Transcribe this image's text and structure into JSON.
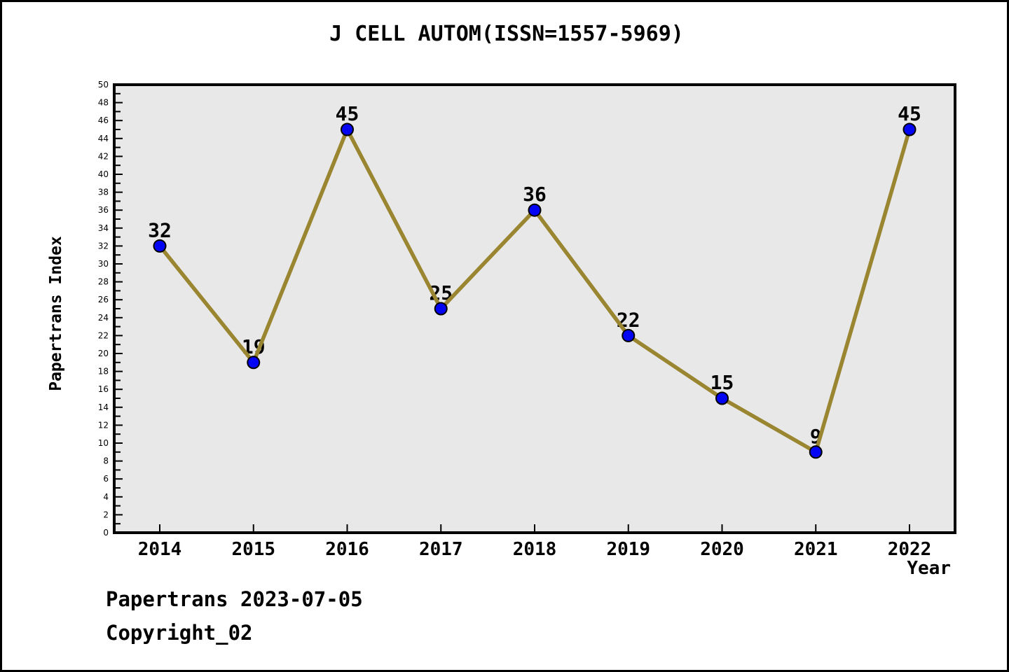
{
  "header": {
    "title": "J CELL AUTOM(ISSN=1557-5969)"
  },
  "axes": {
    "x_label": "Year",
    "y_label": "Papertrans Index"
  },
  "footer": {
    "line1": "Papertrans 2023-07-05",
    "line2": "Copyright_02"
  },
  "colors": {
    "line": "#9A8530",
    "marker_fill": "#0404F5",
    "marker_edge": "#000000",
    "plot_background": "#E8E8E8",
    "axis": "#000000",
    "text": "#000000",
    "page_background": "#FFFFFF"
  },
  "chart_data": {
    "type": "line",
    "title": "J CELL AUTOM(ISSN=1557-5969)",
    "xlabel": "Year",
    "ylabel": "Papertrans Index",
    "x": [
      2014,
      2015,
      2016,
      2017,
      2018,
      2019,
      2020,
      2021,
      2022
    ],
    "series": [
      {
        "name": "Papertrans Index",
        "values": [
          32,
          19,
          45,
          25,
          36,
          22,
          15,
          9,
          45
        ]
      }
    ],
    "point_labels": [
      32,
      19,
      45,
      25,
      36,
      22,
      15,
      9,
      45
    ],
    "ylim": [
      0,
      50
    ],
    "ytick_major_step": 2,
    "ytick_minor_step": 1,
    "grid": false,
    "legend_position": "none"
  }
}
